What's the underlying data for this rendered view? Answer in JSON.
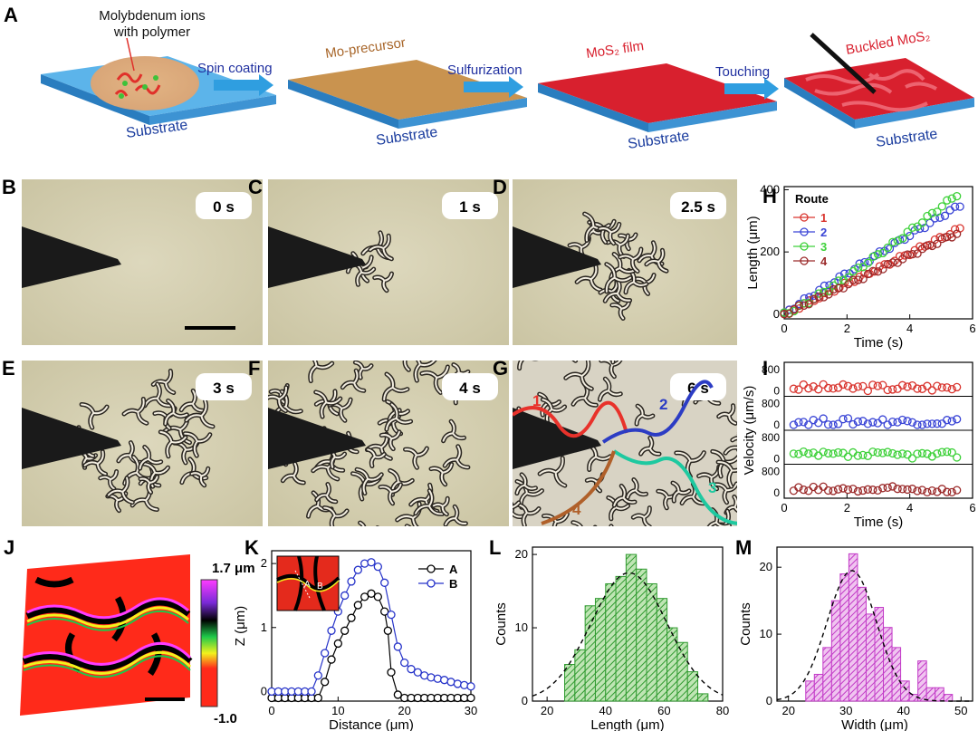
{
  "panel_labels": {
    "A": "A",
    "B": "B",
    "C": "C",
    "D": "D",
    "E": "E",
    "F": "F",
    "G": "G",
    "H": "H",
    "I": "I",
    "J": "J",
    "K": "K",
    "L": "L",
    "M": "M"
  },
  "schematic": {
    "ions_label_1": "Molybdenum ions",
    "ions_label_2": "with polymer",
    "steps": [
      "Spin coating",
      "Sulfurization",
      "Touching"
    ],
    "substrate": "Substrate",
    "mo_precursor": "Mo-precursor",
    "mos2_film": "MoS₂ film",
    "buckled": "Buckled MoS₂",
    "colors": {
      "substrate": "#4aa3df",
      "precursor": "#c9934f",
      "film": "#d8202e",
      "buckled_lines": "#f06a78"
    }
  },
  "micrographs": [
    {
      "label": "B",
      "time": "0 s"
    },
    {
      "label": "C",
      "time": "1 s"
    },
    {
      "label": "D",
      "time": "2.5 s"
    },
    {
      "label": "E",
      "time": "3 s"
    },
    {
      "label": "F",
      "time": "4 s"
    },
    {
      "label": "G",
      "time": "6 s"
    }
  ],
  "routes_overlay": [
    {
      "label": "1",
      "color": "#e8322b"
    },
    {
      "label": "2",
      "color": "#2c3cc4"
    },
    {
      "label": "3",
      "color": "#1ec9a0"
    },
    {
      "label": "4",
      "color": "#b0602a"
    }
  ],
  "colorbar": {
    "max": "1.7 μm",
    "min": "-1.0"
  },
  "chart_data": [
    {
      "panel": "H",
      "type": "scatter",
      "xlabel": "Time (s)",
      "ylabel": "Length (μm)",
      "xlim": [
        0,
        6
      ],
      "ylim": [
        0,
        400
      ],
      "xticks": [
        "0",
        "2",
        "4",
        "6"
      ],
      "yticks": [
        "0",
        "200",
        "400"
      ],
      "legend_title": "Route",
      "series": [
        {
          "name": "1",
          "color": "#d9352f",
          "x_end": 5.6,
          "y_end": 275
        },
        {
          "name": "2",
          "color": "#3a45d6",
          "x_end": 5.6,
          "y_end": 350
        },
        {
          "name": "3",
          "color": "#3ed13a",
          "x_end": 5.5,
          "y_end": 385
        },
        {
          "name": "4",
          "color": "#9b2a2a",
          "x_end": 5.5,
          "y_end": 260
        }
      ]
    },
    {
      "panel": "I",
      "type": "scatter",
      "xlabel": "Time (s)",
      "ylabel": "Velocity (μm/s)",
      "xlim": [
        0,
        6
      ],
      "xticks": [
        "0",
        "2",
        "4",
        "6"
      ],
      "yticks": [
        "0",
        "800"
      ],
      "series": [
        {
          "name": "1",
          "color": "#d9352f",
          "mean": 70
        },
        {
          "name": "2",
          "color": "#3a45d6",
          "mean": 65
        },
        {
          "name": "3",
          "color": "#3ed13a",
          "mean": 90
        },
        {
          "name": "4",
          "color": "#9b2a2a",
          "mean": 60
        }
      ]
    },
    {
      "panel": "K",
      "type": "line",
      "xlabel": "Distance (μm)",
      "ylabel": "Z (μm)",
      "xlim": [
        0,
        30
      ],
      "ylim": [
        -0.15,
        2.2
      ],
      "xticks": [
        "0",
        "10",
        "20",
        "30"
      ],
      "yticks": [
        "0",
        "1",
        "2"
      ],
      "series": [
        {
          "name": "A",
          "color": "#000000",
          "x": [
            0,
            1,
            2,
            3,
            4,
            5,
            6,
            7,
            8,
            9,
            10,
            11,
            12,
            13,
            14,
            15,
            16,
            17,
            17.5,
            18,
            19,
            20,
            21,
            22,
            23,
            24,
            25,
            26,
            27,
            28,
            29,
            30
          ],
          "y": [
            -0.1,
            -0.1,
            -0.1,
            -0.1,
            -0.1,
            -0.1,
            -0.1,
            -0.1,
            0.15,
            0.5,
            0.75,
            0.95,
            1.15,
            1.35,
            1.48,
            1.53,
            1.48,
            1.25,
            0.95,
            0.3,
            -0.05,
            -0.1,
            -0.1,
            -0.1,
            -0.1,
            -0.1,
            -0.1,
            -0.1,
            -0.1,
            -0.1,
            -0.1,
            -0.1
          ]
        },
        {
          "name": "B",
          "color": "#2633c9",
          "x": [
            0,
            1,
            2,
            3,
            4,
            5,
            6,
            7,
            8,
            9,
            10,
            11,
            12,
            13,
            14,
            15,
            16,
            17,
            18,
            19,
            20,
            21,
            22,
            23,
            24,
            25,
            26,
            27,
            28,
            29,
            30
          ],
          "y": [
            0,
            0,
            0,
            0,
            0,
            0,
            0,
            0.25,
            0.6,
            0.95,
            1.25,
            1.5,
            1.72,
            1.9,
            2.0,
            2.02,
            1.95,
            1.7,
            1.2,
            0.7,
            0.45,
            0.35,
            0.3,
            0.25,
            0.22,
            0.2,
            0.18,
            0.15,
            0.12,
            0.1,
            0.08
          ]
        }
      ]
    },
    {
      "panel": "L",
      "type": "bar",
      "xlabel": "Length (μm)",
      "ylabel": "Counts",
      "xlim": [
        15,
        80
      ],
      "ylim": [
        0,
        21
      ],
      "xticks": [
        "20",
        "40",
        "60",
        "80"
      ],
      "yticks": [
        "0",
        "10",
        "20"
      ],
      "bin_width": 3.5,
      "bin_starts": [
        26,
        29.5,
        33,
        36.5,
        40,
        43.5,
        47,
        50.5,
        54,
        57.5,
        61,
        64.5,
        68,
        71.5
      ],
      "values": [
        5,
        7,
        13,
        14,
        16,
        17,
        20,
        18,
        16,
        14,
        10,
        8,
        4,
        1
      ],
      "color": "#2f9a2f",
      "fit": "gaussian",
      "fit_mean": 48,
      "fit_sigma": 13,
      "fit_peak": 17.5
    },
    {
      "panel": "M",
      "type": "bar",
      "xlabel": "Width (μm)",
      "ylabel": "Counts",
      "xlim": [
        18,
        52
      ],
      "ylim": [
        0,
        23
      ],
      "xticks": [
        "20",
        "30",
        "40",
        "50"
      ],
      "yticks": [
        "0",
        "10",
        "20"
      ],
      "bin_width": 1.5,
      "bin_starts": [
        23,
        24.5,
        26,
        27.5,
        29,
        30.5,
        32,
        33.5,
        35,
        36.5,
        38,
        39.5,
        41,
        42.5,
        44,
        45.5,
        47
      ],
      "values": [
        3,
        4,
        8,
        15,
        19,
        22,
        17,
        13,
        14,
        11,
        8,
        3,
        1,
        6,
        2,
        2,
        1
      ],
      "color": "#c23ac7",
      "fit": "gaussian",
      "fit_mean": 31,
      "fit_sigma": 4.3,
      "fit_peak": 19.5
    }
  ]
}
